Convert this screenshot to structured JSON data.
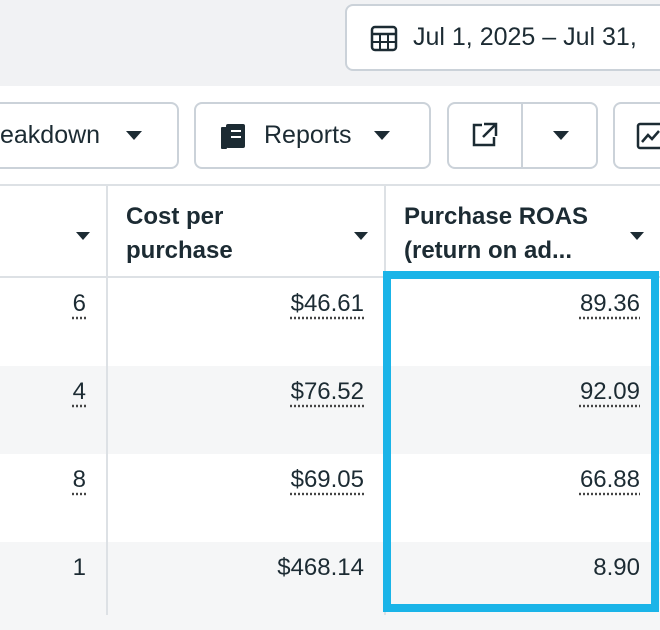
{
  "toolbar": {
    "date_range": "Jul 1, 2025 – Jul 31,",
    "breakdown": "eakdown",
    "reports": "Reports"
  },
  "table": {
    "headers": [
      "",
      "Cost per purchase",
      "Purchase ROAS (return on ad..."
    ],
    "rows": [
      [
        "6",
        "$46.61",
        "89.36"
      ],
      [
        "4",
        "$76.52",
        "92.09"
      ],
      [
        "8",
        "$69.05",
        "66.88"
      ],
      [
        "1",
        "$468.14",
        "8.90"
      ]
    ]
  }
}
